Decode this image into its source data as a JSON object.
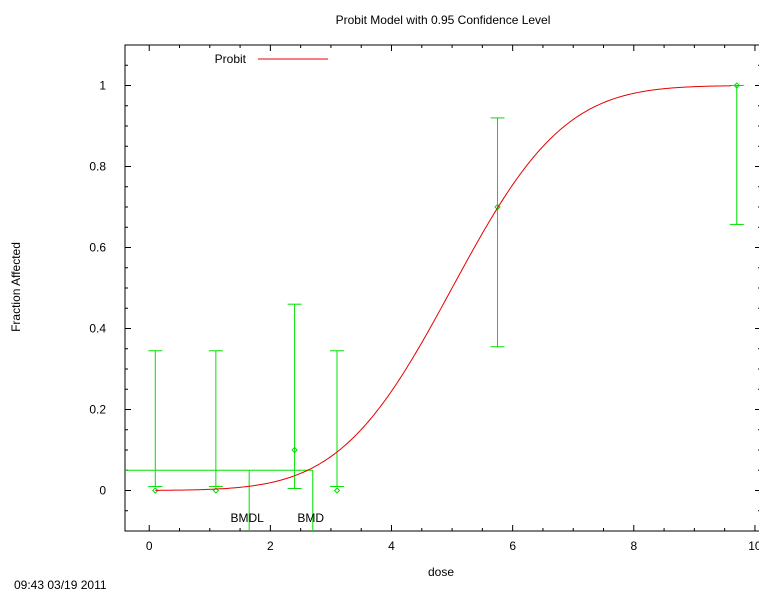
{
  "chart_data": {
    "type": "line",
    "title": "Probit Model with 0.95 Confidence Level",
    "xlabel": "dose",
    "ylabel": "Fraction Affected",
    "xlim": [
      -0.4,
      10.1
    ],
    "ylim": [
      -0.1,
      1.1
    ],
    "xticks": [
      "0",
      "2",
      "4",
      "6",
      "8",
      "10"
    ],
    "xtick_values": [
      0,
      2,
      4,
      6,
      8,
      10
    ],
    "yticks": [
      "0",
      "0.2",
      "0.4",
      "0.6",
      "0.8",
      "1"
    ],
    "ytick_values": [
      0,
      0.2,
      0.4,
      0.6,
      0.8,
      1
    ],
    "grid": false,
    "legend_position": "top-left",
    "series": [
      {
        "name": "Probit",
        "type": "line",
        "color": "#e60000",
        "model": {
          "kind": "probit",
          "mean": 5.0,
          "sd": 1.45,
          "background": 0.0
        }
      },
      {
        "type": "errorbar",
        "color": "#00e000",
        "points": [
          {
            "x": 0.1,
            "y": 0.0,
            "lo": 0.01,
            "hi": 0.345
          },
          {
            "x": 1.1,
            "y": 0.0,
            "lo": 0.01,
            "hi": 0.345
          },
          {
            "x": 2.4,
            "y": 0.1,
            "lo": 0.005,
            "hi": 0.46
          },
          {
            "x": 3.1,
            "y": 0.0,
            "lo": 0.01,
            "hi": 0.345
          },
          {
            "x": 5.75,
            "y": 0.7,
            "lo": 0.355,
            "hi": 0.92
          },
          {
            "x": 9.7,
            "y": 1.0,
            "lo": 0.657,
            "hi": 1.0
          }
        ]
      }
    ],
    "bmr_line": {
      "y": 0.05,
      "color": "#00e000"
    },
    "annotations": [
      {
        "label": "BMDL",
        "x": 1.65
      },
      {
        "label": "BMD",
        "x": 2.7
      }
    ],
    "timestamp": "09:43 03/19 2011"
  }
}
